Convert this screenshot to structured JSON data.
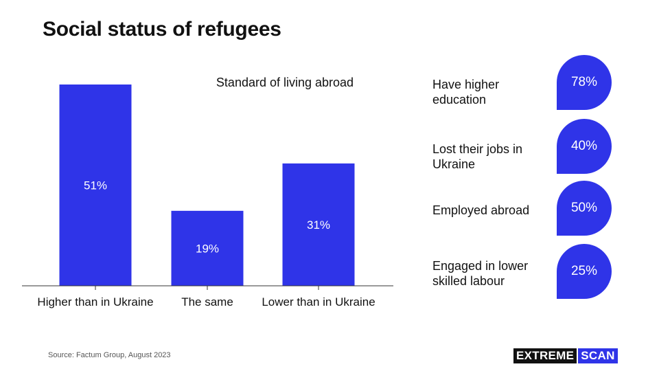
{
  "title": "Social status of refugees",
  "chart_data": {
    "type": "bar",
    "title": "Standard of living abroad",
    "categories": [
      "Higher than in Ukraine",
      "The same",
      "Lower than in Ukraine"
    ],
    "values": [
      51,
      19,
      31
    ],
    "value_labels": [
      "51%",
      "19%",
      "31%"
    ],
    "ylim": [
      0,
      51
    ],
    "color": "#2f34e8",
    "grid": false,
    "legend": "none"
  },
  "stats": [
    {
      "label": "Have higher education",
      "value": "78%"
    },
    {
      "label": "Lost their jobs in Ukraine",
      "value": "40%"
    },
    {
      "label": "Employed abroad",
      "value": "50%"
    },
    {
      "label": "Engaged in lower skilled labour",
      "value": "25%"
    }
  ],
  "source": "Source: Factum Group, August 2023",
  "brand": {
    "part1": "EXTREME",
    "part2": "SCAN"
  },
  "colors": {
    "accent": "#2f34e8",
    "text": "#111111"
  }
}
